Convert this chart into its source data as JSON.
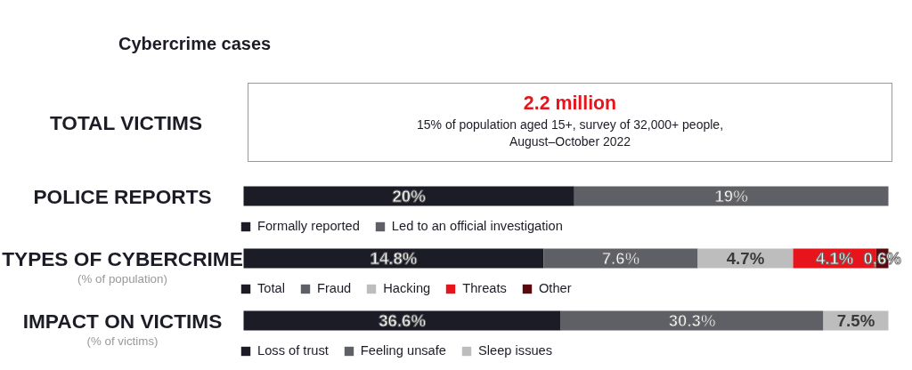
{
  "chart_data": [
    {
      "type": "other",
      "title": "Cybercrime cases",
      "subtitle": "TOTAL VICTIMS",
      "annotations": [
        "2.2 million",
        "15% of population aged 15+, survey of 32,000+ people,",
        "August–October 2022"
      ]
    },
    {
      "type": "bar",
      "orientation": "horizontal",
      "stacked": true,
      "legend": "bottom",
      "categories": [
        "POLICE REPORTS"
      ],
      "series": [
        {
          "name": "Formally reported",
          "color": "#1b1c25",
          "values": [
            20
          ],
          "value_labels": [
            "20%"
          ]
        },
        {
          "name": "Led to an official investigation",
          "color": "#5e6066",
          "values": [
            19
          ],
          "value_labels": [
            "19%"
          ]
        }
      ]
    },
    {
      "type": "bar",
      "orientation": "horizontal",
      "stacked": true,
      "legend": "bottom",
      "categories": [
        "TYPES OF CYBERCRIME"
      ],
      "subtitle": "(% of population)",
      "series": [
        {
          "name": "Total",
          "color": "#1b1c25",
          "values": [
            14.8
          ],
          "value_labels": [
            "14.8%"
          ]
        },
        {
          "name": "Fraud",
          "color": "#5e6066",
          "values": [
            7.6
          ],
          "value_labels": [
            "7.6%"
          ]
        },
        {
          "name": "Hacking",
          "color": "#bdbdbd",
          "values": [
            4.7
          ],
          "value_labels": [
            "4.7%"
          ]
        },
        {
          "name": "Threats",
          "color": "#e8141c",
          "values": [
            4.1
          ],
          "value_labels": [
            "4.1%"
          ]
        },
        {
          "name": "Other",
          "color": "#5a0a0c",
          "values": [
            0.6
          ],
          "value_labels": [
            "0,6%"
          ]
        }
      ]
    },
    {
      "type": "bar",
      "orientation": "horizontal",
      "stacked": true,
      "legend": "bottom",
      "categories": [
        "IMPACT ON VICTIMS"
      ],
      "subtitle": "(% of victims)",
      "series": [
        {
          "name": "Loss of trust",
          "color": "#1b1c25",
          "values": [
            36.6
          ],
          "value_labels": [
            "36.6%"
          ]
        },
        {
          "name": "Feeling unsafe",
          "color": "#5e6066",
          "values": [
            30.3
          ],
          "value_labels": [
            "30.3%"
          ]
        },
        {
          "name": "Sleep issues",
          "color": "#bdbdbd",
          "values": [
            7.5
          ],
          "value_labels": [
            "7.5%"
          ]
        }
      ]
    }
  ]
}
